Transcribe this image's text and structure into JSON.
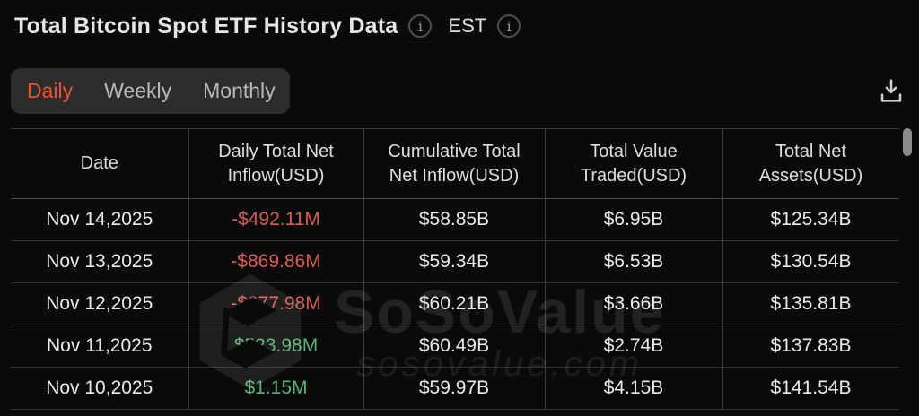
{
  "header": {
    "title": "Total Bitcoin Spot ETF History Data",
    "timezone": "EST"
  },
  "tabs": [
    {
      "label": "Daily",
      "active": true
    },
    {
      "label": "Weekly",
      "active": false
    },
    {
      "label": "Monthly",
      "active": false
    }
  ],
  "toolbar": {
    "download_icon": "download-icon"
  },
  "table": {
    "columns": [
      "Date",
      "Daily Total Net Inflow(USD)",
      "Cumulative Total Net Inflow(USD)",
      "Total Value Traded(USD)",
      "Total Net Assets(USD)"
    ],
    "column_keys": [
      "date",
      "daily_total_net_inflow",
      "cumulative_total_net_inflow",
      "total_value_traded",
      "total_net_assets"
    ],
    "rows": [
      {
        "date": "Nov 14,2025",
        "daily_total_net_inflow": "-$492.11M",
        "trend": "negative",
        "cumulative_total_net_inflow": "$58.85B",
        "total_value_traded": "$6.95B",
        "total_net_assets": "$125.34B"
      },
      {
        "date": "Nov 13,2025",
        "daily_total_net_inflow": "-$869.86M",
        "trend": "negative",
        "cumulative_total_net_inflow": "$59.34B",
        "total_value_traded": "$6.53B",
        "total_net_assets": "$130.54B"
      },
      {
        "date": "Nov 12,2025",
        "daily_total_net_inflow": "-$277.98M",
        "trend": "negative",
        "cumulative_total_net_inflow": "$60.21B",
        "total_value_traded": "$3.66B",
        "total_net_assets": "$135.81B"
      },
      {
        "date": "Nov 11,2025",
        "daily_total_net_inflow": "$523.98M",
        "trend": "positive",
        "cumulative_total_net_inflow": "$60.49B",
        "total_value_traded": "$2.74B",
        "total_net_assets": "$137.83B"
      },
      {
        "date": "Nov 10,2025",
        "daily_total_net_inflow": "$1.15M",
        "trend": "positive",
        "cumulative_total_net_inflow": "$59.97B",
        "total_value_traded": "$4.15B",
        "total_net_assets": "$141.54B"
      }
    ]
  },
  "watermark": {
    "brand": "SoSoValue",
    "domain": "sosovalue.com",
    "logo": "sosovalue-cube-logo"
  },
  "colors": {
    "background": "#0A0A0A",
    "tab_bar_background": "#2C2C2C",
    "accent_tab_active": "#E65438",
    "negative": "#D65F55",
    "positive": "#57B374",
    "border": "#3C3C3C"
  }
}
